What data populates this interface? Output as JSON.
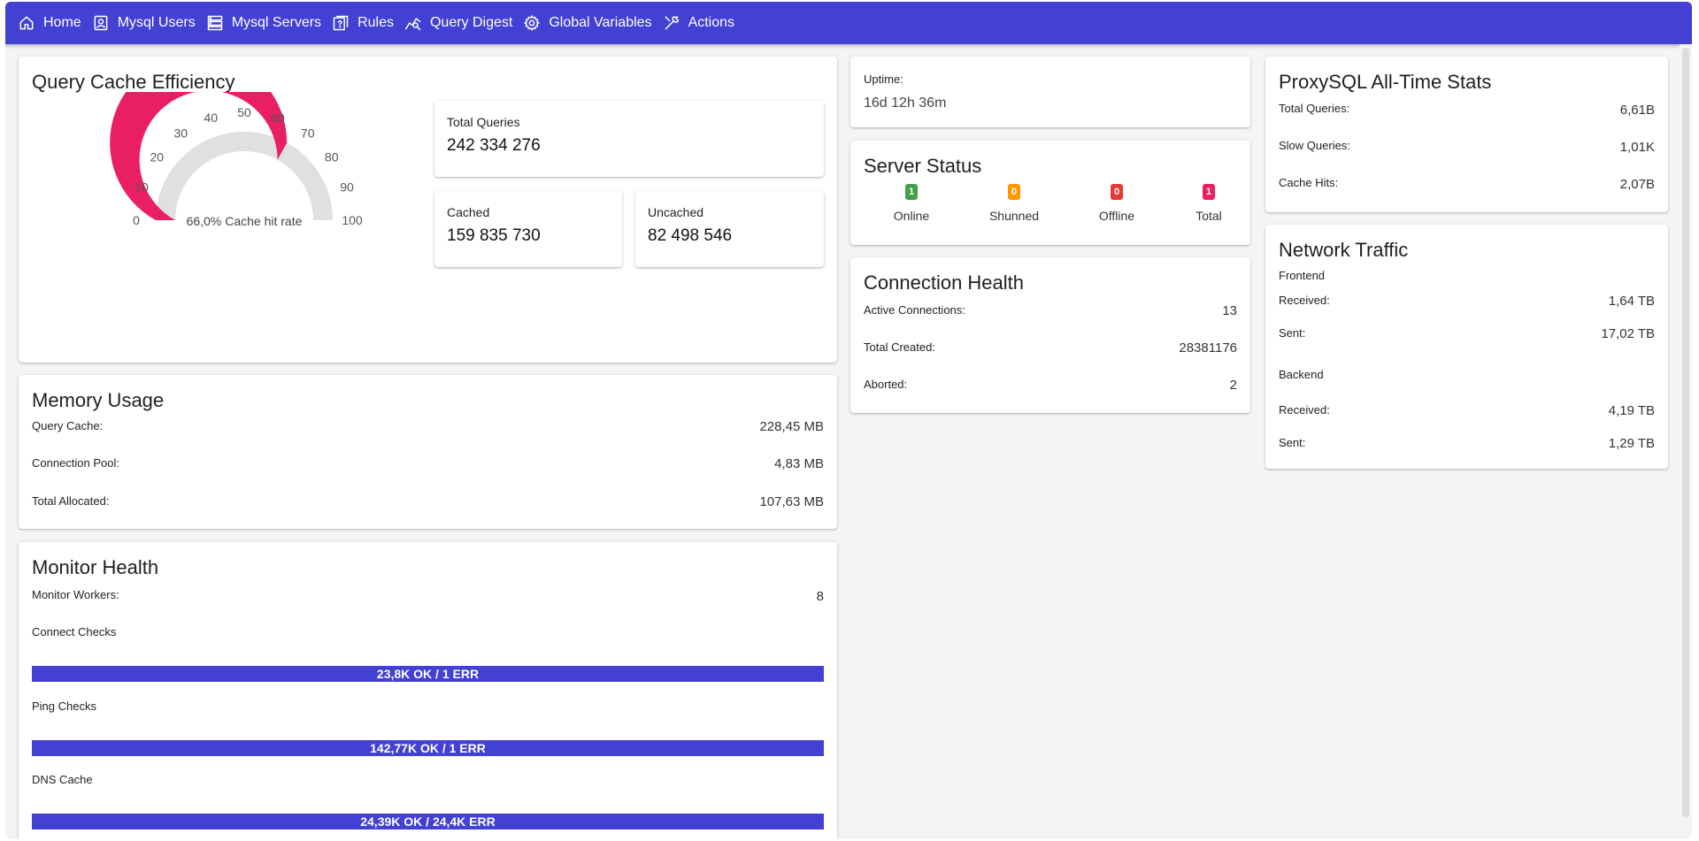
{
  "nav": {
    "items": [
      {
        "label": "Home",
        "icon": "home-icon"
      },
      {
        "label": "Mysql Users",
        "icon": "user-badge-icon"
      },
      {
        "label": "Mysql Servers",
        "icon": "server-icon"
      },
      {
        "label": "Rules",
        "icon": "rules-icon"
      },
      {
        "label": "Query Digest",
        "icon": "query-chart-icon"
      },
      {
        "label": "Global Variables",
        "icon": "gear-icon"
      },
      {
        "label": "Actions",
        "icon": "wrench-icon"
      }
    ]
  },
  "query_cache": {
    "title": "Query Cache Efficiency",
    "gauge": {
      "value": 66.0,
      "min": 0,
      "max": 100,
      "ticks": [
        "0",
        "10",
        "20",
        "30",
        "40",
        "50",
        "60",
        "70",
        "80",
        "90",
        "100"
      ],
      "caption": "66,0% Cache hit rate",
      "fill_color": "#e91e63",
      "track_color": "#e0e0e0"
    },
    "total": {
      "label": "Total Queries",
      "value": "242 334 276"
    },
    "cached": {
      "label": "Cached",
      "value": "159 835 730"
    },
    "uncached": {
      "label": "Uncached",
      "value": "82 498 546"
    }
  },
  "memory": {
    "title": "Memory Usage",
    "rows": [
      {
        "label": "Query Cache:",
        "value": "228,45 MB"
      },
      {
        "label": "Connection Pool:",
        "value": "4,83 MB"
      },
      {
        "label": "Total Allocated:",
        "value": "107,63 MB"
      }
    ]
  },
  "monitor": {
    "title": "Monitor Health",
    "workers_label": "Monitor Workers:",
    "workers_value": "8",
    "checks": [
      {
        "label": "Connect Checks",
        "bar": "23,8K OK / 1 ERR"
      },
      {
        "label": "Ping Checks",
        "bar": "142,77K OK / 1 ERR"
      },
      {
        "label": "DNS Cache",
        "bar": "24,39K OK / 24,4K ERR"
      }
    ]
  },
  "uptime": {
    "label": "Uptime:",
    "value": "16d 12h 36m"
  },
  "server_status": {
    "title": "Server Status",
    "items": [
      {
        "count": "1",
        "label": "Online",
        "color": "#43a047"
      },
      {
        "count": "0",
        "label": "Shunned",
        "color": "#ff9800"
      },
      {
        "count": "0",
        "label": "Offline",
        "color": "#e53935"
      },
      {
        "count": "1",
        "label": "Total",
        "color": "#e91e63"
      }
    ]
  },
  "connection_health": {
    "title": "Connection Health",
    "rows": [
      {
        "label": "Active Connections:",
        "value": "13"
      },
      {
        "label": "Total Created:",
        "value": "28381176"
      },
      {
        "label": "Aborted:",
        "value": "2"
      }
    ]
  },
  "all_time": {
    "title": "ProxySQL All-Time Stats",
    "rows": [
      {
        "label": "Total Queries:",
        "value": "6,61B"
      },
      {
        "label": "Slow Queries:",
        "value": "1,01K"
      },
      {
        "label": "Cache Hits:",
        "value": "2,07B"
      }
    ]
  },
  "network": {
    "title": "Network Traffic",
    "frontend": {
      "heading": "Frontend",
      "rows": [
        {
          "label": "Received:",
          "value": "1,64 TB"
        },
        {
          "label": "Sent:",
          "value": "17,02 TB"
        }
      ]
    },
    "backend": {
      "heading": "Backend",
      "rows": [
        {
          "label": "Received:",
          "value": "4,19 TB"
        },
        {
          "label": "Sent:",
          "value": "1,29 TB"
        }
      ]
    }
  }
}
